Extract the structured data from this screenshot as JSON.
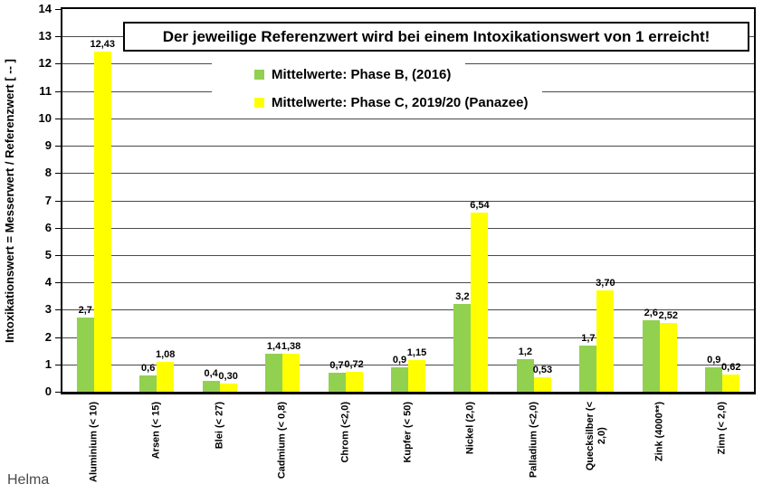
{
  "credit": "Helma",
  "colors": {
    "series_green": "#92D050",
    "series_yellow": "#FFFF00",
    "gridline": "#4a4a4a",
    "axis": "#000000",
    "background": "#ffffff"
  },
  "chart_data": {
    "type": "bar",
    "title": "Der jeweilige Referenzwert wird bei einem Intoxikationswert von 1 erreicht!",
    "ylabel": "Intoxikationswert = Messerwert / Referenzwert [ -- ]",
    "xlabel": "",
    "ylim": [
      0,
      14
    ],
    "yticks": [
      0,
      1,
      2,
      3,
      4,
      5,
      6,
      7,
      8,
      9,
      10,
      11,
      12,
      13,
      14
    ],
    "grid": true,
    "legend_position": "top-center-inside",
    "categories": [
      "Aluminium (< 10)",
      "Arsen (< 15)",
      "Blei (< 27)",
      "Cadmium (< 0,8)",
      "Chrom (<2,0)",
      "Kupfer (< 50)",
      "Nickel (2,0)",
      "Palladium (<2,0)",
      "Quecksilber (<\n2,0)",
      "Zink (4000**)",
      "Zinn (< 2,0)"
    ],
    "series": [
      {
        "name": "Mittelwerte: Phase B, (2016)",
        "color": "#92D050",
        "values": [
          2.7,
          0.6,
          0.4,
          1.4,
          0.7,
          0.9,
          3.2,
          1.2,
          1.7,
          2.6,
          0.9
        ],
        "value_labels": [
          "2,7",
          "0,6",
          "0,4",
          "1,4",
          "0,7",
          "0,9",
          "3,2",
          "1,2",
          "1,7",
          "2,6",
          "0,9"
        ]
      },
      {
        "name": "Mittelwerte: Phase C, 2019/20 (Panazee)",
        "color": "#FFFF00",
        "values": [
          12.43,
          1.08,
          0.3,
          1.38,
          0.72,
          1.15,
          6.54,
          0.53,
          3.7,
          2.52,
          0.62
        ],
        "value_labels": [
          "12,43",
          "1,08",
          "0,30",
          "1,38",
          "0,72",
          "1,15",
          "6,54",
          "0,53",
          "3,70",
          "2,52",
          "0,62"
        ]
      }
    ]
  }
}
